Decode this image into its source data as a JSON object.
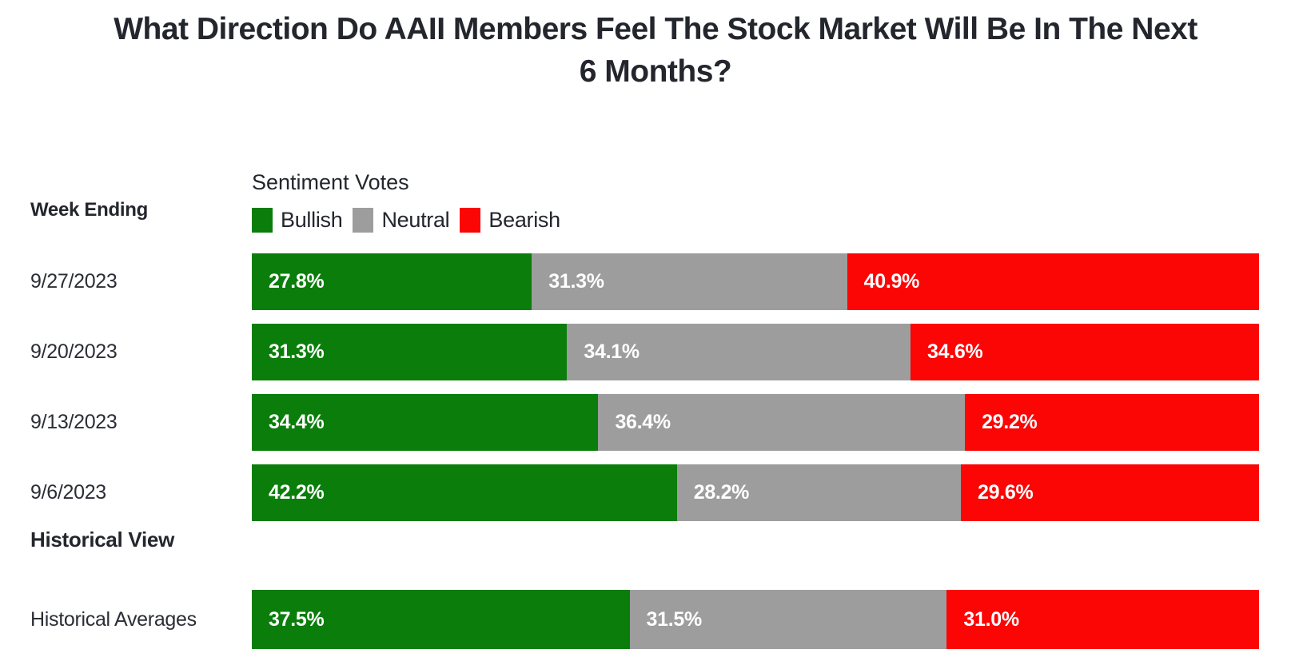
{
  "title": "What Direction Do AAII Members Feel The Stock Market Will Be In The Next\n6 Months?",
  "header": {
    "row_axis_label": "Week Ending",
    "legend_title": "Sentiment Votes"
  },
  "sections": {
    "historical_heading": "Historical View"
  },
  "colors": {
    "bullish": "#0a7d0a",
    "neutral": "#9d9d9d",
    "bearish": "#fb0505",
    "title_text": "#23262d",
    "value_text": "#ffffff"
  },
  "chart_data": {
    "type": "bar",
    "orientation": "horizontal_stacked",
    "value_unit": "percent",
    "xlim": [
      0,
      100
    ],
    "grid": false,
    "legend_position": "top-left above bars",
    "title": "What Direction Do AAII Members Feel The Stock Market Will Be In The Next 6 Months?",
    "legend_title": "Sentiment Votes",
    "row_axis_label": "Week Ending",
    "series": [
      {
        "name": "Bullish",
        "color": "#0a7d0a"
      },
      {
        "name": "Neutral",
        "color": "#9d9d9d"
      },
      {
        "name": "Bearish",
        "color": "#fb0505"
      }
    ],
    "categories": [
      "9/27/2023",
      "9/20/2023",
      "9/13/2023",
      "9/6/2023"
    ],
    "rows": [
      {
        "label": "9/27/2023",
        "values": [
          27.8,
          31.3,
          40.9
        ],
        "value_labels": [
          "27.8%",
          "31.3%",
          "40.9%"
        ]
      },
      {
        "label": "9/20/2023",
        "values": [
          31.3,
          34.1,
          34.6
        ],
        "value_labels": [
          "31.3%",
          "34.1%",
          "34.6%"
        ]
      },
      {
        "label": "9/13/2023",
        "values": [
          34.4,
          36.4,
          29.2
        ],
        "value_labels": [
          "34.4%",
          "36.4%",
          "29.2%"
        ]
      },
      {
        "label": "9/6/2023",
        "values": [
          42.2,
          28.2,
          29.6
        ],
        "value_labels": [
          "42.2%",
          "28.2%",
          "29.6%"
        ]
      }
    ],
    "historical_section_heading": "Historical View",
    "historical_rows": [
      {
        "label": "Historical Averages",
        "values": [
          37.5,
          31.5,
          31.0
        ],
        "value_labels": [
          "37.5%",
          "31.5%",
          "31.0%"
        ]
      }
    ]
  }
}
